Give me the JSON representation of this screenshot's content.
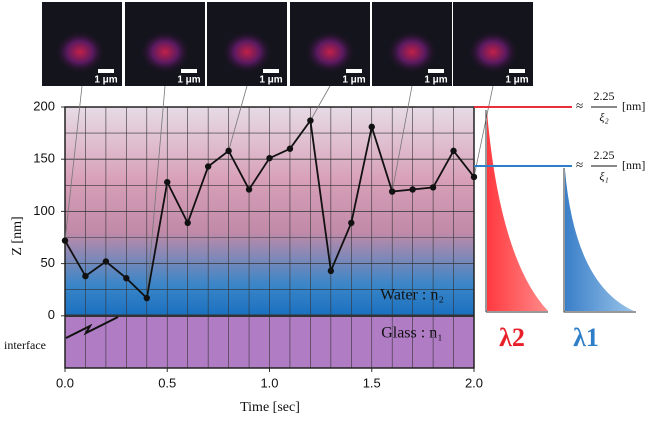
{
  "chart_data": {
    "type": "line",
    "xlabel": "Time [sec]",
    "ylabel": "Z [nm]",
    "x": [
      0,
      0.1,
      0.2,
      0.3,
      0.4,
      0.5,
      0.6,
      0.7,
      0.8,
      0.9,
      1.0,
      1.1,
      1.2,
      1.3,
      1.4,
      1.5,
      1.6,
      1.7,
      1.8,
      1.9,
      2.0
    ],
    "series": [
      {
        "color": "#111111",
        "values": [
          72,
          38,
          52,
          36,
          17,
          128,
          89,
          143,
          158,
          121,
          151,
          160,
          187,
          43,
          89,
          181,
          119,
          121,
          123,
          158,
          133
        ]
      }
    ],
    "xlim": [
      0,
      2
    ],
    "ylim": [
      -50,
      200
    ],
    "xticks": [
      {
        "value": 0,
        "label": "0.0"
      },
      0.5,
      {
        "value": 1,
        "label": "1.0"
      },
      1.5,
      {
        "value": 2,
        "label": "2.0"
      }
    ],
    "yticks": [
      0,
      50,
      100,
      150,
      200
    ],
    "grid": true,
    "region_labels": {
      "water": "Water : n₂",
      "glass": "Glass : n₁",
      "interface": "interface"
    },
    "annotations": [
      {
        "approx": "≈",
        "numerator": "2.25",
        "denominator": "ξ₂",
        "unit": "[nm]",
        "color": "#e8303a"
      },
      {
        "approx": "≈",
        "numerator": "2.25",
        "denominator": "ξ₁",
        "unit": "[nm]",
        "color": "#2e7fc8"
      }
    ],
    "lambda_labels": [
      {
        "text": "λ2",
        "color": "#e8202a"
      },
      {
        "text": "λ1",
        "color": "#2e7fc8"
      }
    ],
    "scale_bars": [
      "1 μm",
      "1 μm",
      "1 μm",
      "1 μm",
      "1 μm",
      "1 μm"
    ]
  }
}
